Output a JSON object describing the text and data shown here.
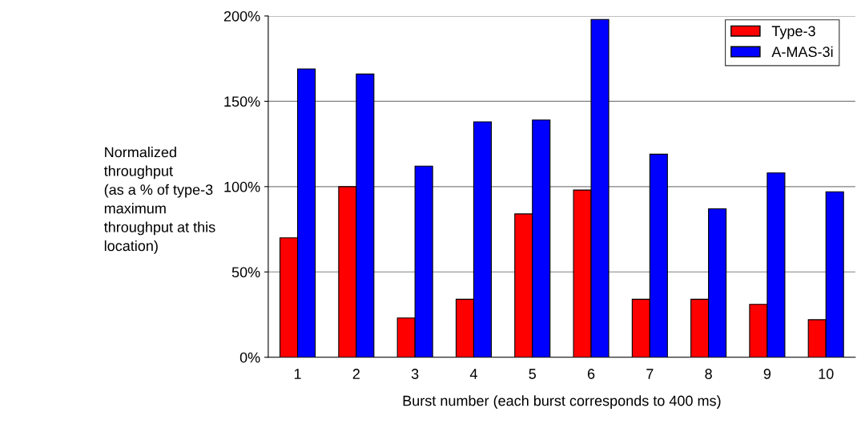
{
  "chart_data": {
    "type": "bar",
    "xlabel": "Burst number (each burst corresponds to 400 ms)",
    "ylabel": "Normalized\nthroughput\n(as a % of type-3\nmaximum\nthroughput at this\nlocation)",
    "categories": [
      "1",
      "2",
      "3",
      "4",
      "5",
      "6",
      "7",
      "8",
      "9",
      "10"
    ],
    "series": [
      {
        "name": "Type-3",
        "color": "#ff0000",
        "values": [
          70,
          100,
          23,
          34,
          84,
          98,
          34,
          34,
          31,
          22
        ]
      },
      {
        "name": "A-MAS-3i",
        "color": "#0000ff",
        "values": [
          169,
          166,
          112,
          138,
          139,
          198,
          119,
          87,
          108,
          97
        ]
      }
    ],
    "ylim": [
      0,
      200
    ],
    "yticks": [
      {
        "value": 0,
        "label": "0%"
      },
      {
        "value": 50,
        "label": "50%"
      },
      {
        "value": 100,
        "label": "100%"
      },
      {
        "value": 150,
        "label": "150%"
      },
      {
        "value": 200,
        "label": "200%"
      }
    ],
    "grid": "y",
    "legend": "top right"
  }
}
